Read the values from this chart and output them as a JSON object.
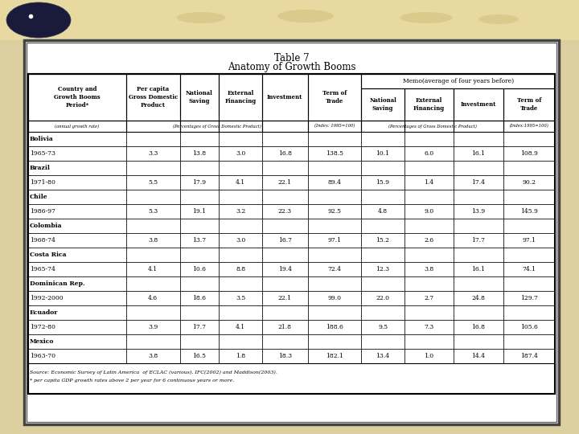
{
  "title_line1": "Table 7",
  "title_line2": "Anatomy of Growth Booms",
  "rows": [
    [
      "Bolivia",
      "",
      "",
      "",
      "",
      "",
      "",
      "",
      "",
      ""
    ],
    [
      "1965-73",
      "3.3",
      "13.8",
      "3.0",
      "16.8",
      "138.5",
      "10.1",
      "6.0",
      "16.1",
      "108.9"
    ],
    [
      "Brazil",
      "",
      "",
      "",
      "",
      "",
      "",
      "",
      "",
      ""
    ],
    [
      "1971-80",
      "5.5",
      "17.9",
      "4.1",
      "22.1",
      "89.4",
      "15.9",
      "1.4",
      "17.4",
      "90.2"
    ],
    [
      "Chile",
      "",
      "",
      "",
      "",
      "",
      "",
      "",
      "",
      ""
    ],
    [
      "1986-97",
      "5.3",
      "19.1",
      "3.2",
      "22.3",
      "92.5",
      "4.8",
      "9.0",
      "13.9",
      "145.9"
    ],
    [
      "Colombia",
      "",
      "",
      "",
      "",
      "",
      "",
      "",
      "",
      ""
    ],
    [
      "1968-74",
      "3.8",
      "13.7",
      "3.0",
      "16.7",
      "97.1",
      "15.2",
      "2.6",
      "17.7",
      "97.1"
    ],
    [
      "Costa Rica",
      "",
      "",
      "",
      "",
      "",
      "",
      "",
      "",
      ""
    ],
    [
      "1965-74",
      "4.1",
      "10.6",
      "8.8",
      "19.4",
      "72.4",
      "12.3",
      "3.8",
      "16.1",
      "74.1"
    ],
    [
      "Dominican Rep.",
      "",
      "",
      "",
      "",
      "",
      "",
      "",
      "",
      ""
    ],
    [
      "1992-2000",
      "4.6",
      "18.6",
      "3.5",
      "22.1",
      "99.0",
      "22.0",
      "2.7",
      "24.8",
      "129.7"
    ],
    [
      "Ecuador",
      "",
      "",
      "",
      "",
      "",
      "",
      "",
      "",
      ""
    ],
    [
      "1972-80",
      "3.9",
      "17.7",
      "4.1",
      "21.8",
      "188.6",
      "9.5",
      "7.3",
      "16.8",
      "105.6"
    ],
    [
      "Mexico",
      "",
      "",
      "",
      "",
      "",
      "",
      "",
      "",
      ""
    ],
    [
      "1963-70",
      "3.8",
      "16.5",
      "1.8",
      "18.3",
      "182.1",
      "13.4",
      "1.0",
      "14.4",
      "187.4"
    ]
  ],
  "source_line1": "Source: Economic Survey of Latin America  of ECLAC (various), IFC(2002) and Maddison(2003).",
  "source_line2": "* per capita GDP growth rates above 2 per year for 6 continuous years or more.",
  "banner_color": "#e8d9a0",
  "bg_color": "#ddd0a0",
  "white_bg": "#ffffff",
  "bold_rows": [
    0,
    2,
    4,
    6,
    8,
    10,
    12,
    14
  ],
  "col_header_texts": [
    "Country and\nGrowth Booms\nPeriod*",
    "Per capita\nGross Domestic\nProduct",
    "National\nSaving",
    "External\nFinancing",
    "Investment",
    "Term of\nTrade",
    "National\nSaving",
    "External\nFinancing",
    "Investment",
    "Term of\nTrade"
  ],
  "col_sub_row0_annot": "(annual growth rate)",
  "col_sub_row1_annot": "(Percentages of Gross Domestic Product)",
  "col_sub_row5_annot": "(Index: 1995=100)",
  "col_sub_row6to8_annot": "(Percentages of Gross Domestic Product)",
  "col_sub_row9_annot": "(Index:1995=100)",
  "memo_header": "Memo(average of four years before)"
}
